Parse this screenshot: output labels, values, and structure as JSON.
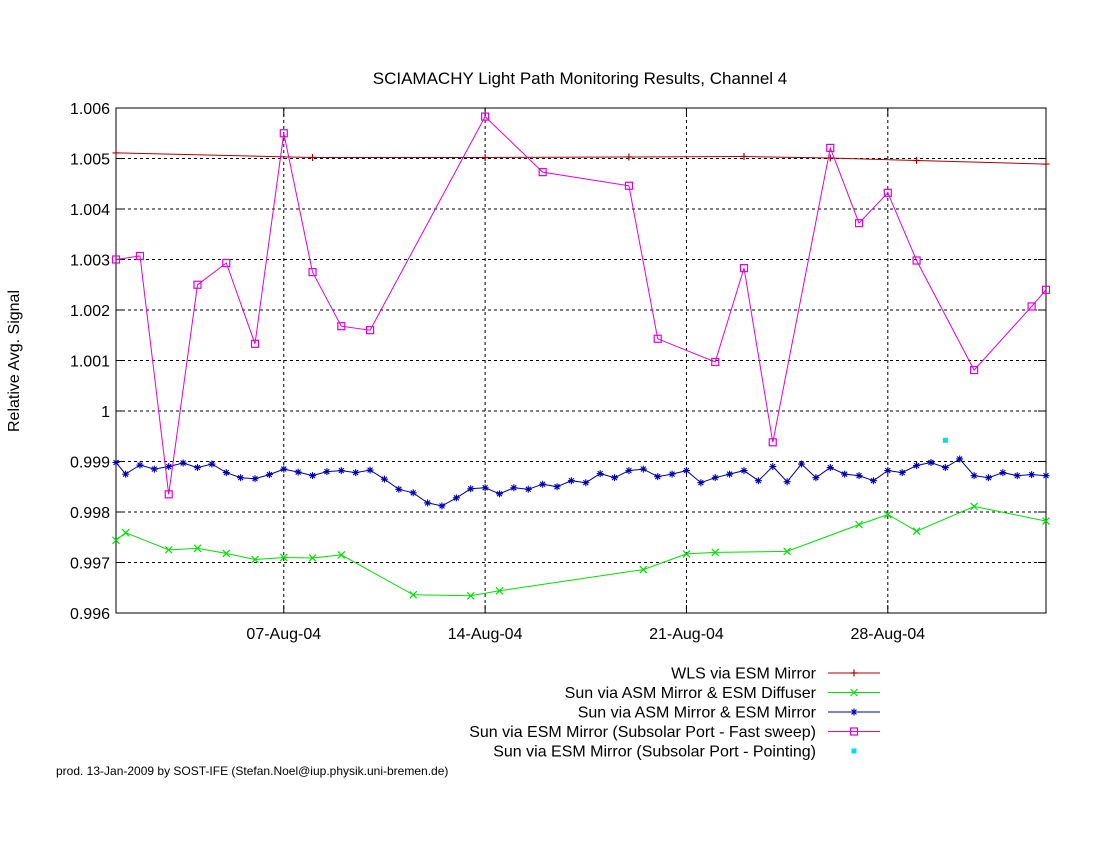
{
  "chart_data": {
    "type": "line",
    "title": "SCIAMACHY Light Path Monitoring Results, Channel 4",
    "xlabel": "",
    "ylabel": "Relative Avg. Signal",
    "xlim": [
      "2004-08-01T04:00",
      "2004-09-02T12:00"
    ],
    "ylim": [
      0.996,
      1.006
    ],
    "y_ticks": [
      "0.996",
      "0.997",
      "0.998",
      "0.999",
      "1",
      "1.001",
      "1.002",
      "1.003",
      "1.004",
      "1.005",
      "1.006"
    ],
    "x_ticks": [
      {
        "date": "2004-08-07",
        "label": "07-Aug-04"
      },
      {
        "date": "2004-08-14",
        "label": "14-Aug-04"
      },
      {
        "date": "2004-08-21",
        "label": "21-Aug-04"
      },
      {
        "date": "2004-08-28",
        "label": "28-Aug-04"
      }
    ],
    "grid": true,
    "legend_position": "bottom-right",
    "footer": "prod. 13-Jan-2009 by SOST-IFE (Stefan.Noel@iup.physik.uni-bremen.de)",
    "series": [
      {
        "name": "WLS via ESM Mirror",
        "color": "#b00000",
        "marker": "plus",
        "x": [
          "2004-08-01T04:00",
          "2004-08-08T00:00",
          "2004-08-14T00:00",
          "2004-08-19T00:00",
          "2004-08-23T00:00",
          "2004-08-26T00:00",
          "2004-08-29T00:00",
          "2004-09-02T12:00"
        ],
        "y": [
          1.00511,
          1.00502,
          1.00502,
          1.00503,
          1.00504,
          1.00501,
          1.00496,
          1.00489
        ]
      },
      {
        "name": "Sun via ASM Mirror & ESM Diffuser",
        "color": "#00e000",
        "marker": "cross",
        "x": [
          "2004-08-01T04:00",
          "2004-08-01T12:00",
          "2004-08-03T00:00",
          "2004-08-04T00:00",
          "2004-08-05T00:00",
          "2004-08-06T00:00",
          "2004-08-07T00:00",
          "2004-08-08T00:00",
          "2004-08-09T00:00",
          "2004-08-11T12:00",
          "2004-08-13T12:00",
          "2004-08-14T12:00",
          "2004-08-19T12:00",
          "2004-08-21T00:00",
          "2004-08-22T00:00",
          "2004-08-24T12:00",
          "2004-08-27T00:00",
          "2004-08-28T00:00",
          "2004-08-29T00:00",
          "2004-08-31T00:00",
          "2004-09-02T12:00"
        ],
        "y": [
          0.99744,
          0.99759,
          0.99725,
          0.99728,
          0.99718,
          0.99706,
          0.9971,
          0.99709,
          0.99715,
          0.99636,
          0.99634,
          0.99644,
          0.99686,
          0.99717,
          0.9972,
          0.99722,
          0.99775,
          0.99795,
          0.99762,
          0.99811,
          0.99782
        ]
      },
      {
        "name": "Sun via ASM Mirror & ESM Mirror",
        "color": "#0000b0",
        "marker": "star",
        "x": [
          "2004-08-01T04:00",
          "2004-08-01T12:00",
          "2004-08-02T00:00",
          "2004-08-02T12:00",
          "2004-08-03T00:00",
          "2004-08-03T12:00",
          "2004-08-04T00:00",
          "2004-08-04T12:00",
          "2004-08-05T00:00",
          "2004-08-05T12:00",
          "2004-08-06T00:00",
          "2004-08-06T12:00",
          "2004-08-07T00:00",
          "2004-08-07T12:00",
          "2004-08-08T00:00",
          "2004-08-08T12:00",
          "2004-08-09T00:00",
          "2004-08-09T12:00",
          "2004-08-10T00:00",
          "2004-08-10T12:00",
          "2004-08-11T00:00",
          "2004-08-11T12:00",
          "2004-08-12T00:00",
          "2004-08-12T12:00",
          "2004-08-13T00:00",
          "2004-08-13T12:00",
          "2004-08-14T00:00",
          "2004-08-14T12:00",
          "2004-08-15T00:00",
          "2004-08-15T12:00",
          "2004-08-16T00:00",
          "2004-08-16T12:00",
          "2004-08-17T00:00",
          "2004-08-17T12:00",
          "2004-08-18T00:00",
          "2004-08-18T12:00",
          "2004-08-19T00:00",
          "2004-08-19T12:00",
          "2004-08-20T00:00",
          "2004-08-20T12:00",
          "2004-08-21T00:00",
          "2004-08-21T12:00",
          "2004-08-22T00:00",
          "2004-08-22T12:00",
          "2004-08-23T00:00",
          "2004-08-23T12:00",
          "2004-08-24T00:00",
          "2004-08-24T12:00",
          "2004-08-25T00:00",
          "2004-08-25T12:00",
          "2004-08-26T00:00",
          "2004-08-26T12:00",
          "2004-08-27T00:00",
          "2004-08-27T12:00",
          "2004-08-28T00:00",
          "2004-08-28T12:00",
          "2004-08-29T00:00",
          "2004-08-29T12:00",
          "2004-08-30T00:00",
          "2004-08-30T12:00",
          "2004-08-31T00:00",
          "2004-08-31T12:00",
          "2004-09-01T00:00",
          "2004-09-01T12:00",
          "2004-09-02T00:00",
          "2004-09-02T12:00"
        ],
        "y": [
          0.99898,
          0.99875,
          0.99893,
          0.99885,
          0.9989,
          0.99897,
          0.99888,
          0.99895,
          0.99878,
          0.99868,
          0.99866,
          0.99874,
          0.99885,
          0.99879,
          0.99872,
          0.9988,
          0.99882,
          0.99878,
          0.99883,
          0.99865,
          0.99845,
          0.99838,
          0.99818,
          0.99812,
          0.99828,
          0.99846,
          0.99848,
          0.99836,
          0.99848,
          0.99845,
          0.99855,
          0.9985,
          0.99862,
          0.99858,
          0.99876,
          0.99868,
          0.99882,
          0.99885,
          0.9987,
          0.99875,
          0.99882,
          0.99858,
          0.99868,
          0.99875,
          0.99882,
          0.99862,
          0.9989,
          0.9986,
          0.99895,
          0.99868,
          0.99888,
          0.99875,
          0.99872,
          0.99862,
          0.99882,
          0.99878,
          0.99892,
          0.99898,
          0.99888,
          0.99905,
          0.99872,
          0.99868,
          0.99878,
          0.99872,
          0.99874,
          0.99872
        ]
      },
      {
        "name": "Sun via ESM Mirror (Subsolar Port - Fast sweep)",
        "color": "#e000e0",
        "marker": "square",
        "x": [
          "2004-08-01T04:00",
          "2004-08-02T00:00",
          "2004-08-03T00:00",
          "2004-08-04T00:00",
          "2004-08-05T00:00",
          "2004-08-06T00:00",
          "2004-08-07T00:00",
          "2004-08-08T00:00",
          "2004-08-09T00:00",
          "2004-08-10T00:00",
          "2004-08-14T00:00",
          "2004-08-16T00:00",
          "2004-08-19T00:00",
          "2004-08-20T00:00",
          "2004-08-22T00:00",
          "2004-08-23T00:00",
          "2004-08-24T00:00",
          "2004-08-26T00:00",
          "2004-08-27T00:00",
          "2004-08-28T00:00",
          "2004-08-29T00:00",
          "2004-08-31T00:00",
          "2004-09-02T00:00",
          "2004-09-02T12:00"
        ],
        "y": [
          1.003,
          1.00307,
          0.99835,
          1.0025,
          1.00293,
          1.00133,
          1.0055,
          1.00275,
          1.00168,
          1.0016,
          1.00583,
          1.00473,
          1.00446,
          1.00143,
          1.00097,
          1.00283,
          0.99938,
          1.00521,
          1.00372,
          1.00432,
          1.00298,
          1.00081,
          1.00207,
          1.0024
        ]
      },
      {
        "name": "Sun via ESM Mirror (Subsolar Port - Pointing)",
        "color": "#00e0e0",
        "marker": "dot",
        "x": [
          "2004-08-30T00:00"
        ],
        "y": [
          0.99942
        ]
      }
    ]
  }
}
